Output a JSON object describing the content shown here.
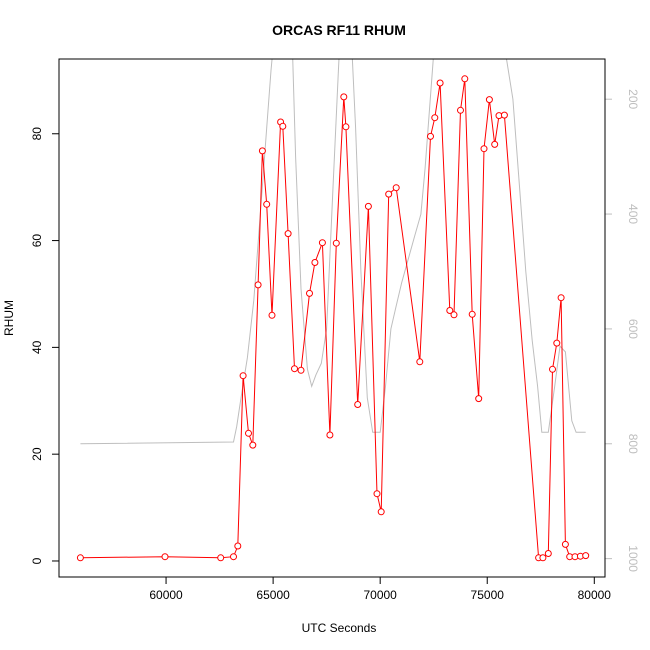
{
  "chart_data": {
    "type": "line",
    "title": "ORCAS RF11 RHUM",
    "xlabel": "UTC Seconds",
    "ylabel": "RHUM",
    "xlim": [
      55000,
      80500
    ],
    "ylim": [
      -3,
      94
    ],
    "x_ticks": [
      60000,
      65000,
      70000,
      75000,
      80000
    ],
    "y_ticks": [
      0,
      20,
      40,
      60,
      80
    ],
    "secondary_axis": {
      "side": "right",
      "reversed": true,
      "ticks": [
        200,
        400,
        600,
        800,
        1000
      ],
      "color": "#bebebe"
    },
    "series": [
      {
        "color": "#ff0000",
        "marker": "open-circle",
        "x": [
          56000,
          59950,
          62550,
          63150,
          63350,
          63600,
          63850,
          64050,
          64300,
          64500,
          64700,
          64950,
          65350,
          65450,
          65700,
          66000,
          66300,
          66700,
          66950,
          67300,
          67650,
          67950,
          68300,
          68400,
          68950,
          69450,
          69850,
          70050,
          70400,
          70750,
          71850,
          72350,
          72550,
          72800,
          73250,
          73450,
          73750,
          73950,
          74300,
          74600,
          74850,
          75100,
          75350,
          75550,
          75800,
          77400,
          77600,
          77850,
          78050,
          78250,
          78450,
          78650,
          78850,
          79100,
          79350,
          79600
        ],
        "y": [
          0.6,
          0.8,
          0.6,
          0.8,
          2.8,
          34.7,
          23.9,
          21.7,
          51.7,
          76.8,
          66.8,
          46.0,
          82.2,
          81.4,
          61.3,
          36.0,
          35.7,
          50.1,
          55.9,
          59.6,
          23.6,
          59.5,
          86.9,
          81.3,
          29.3,
          66.4,
          12.6,
          9.2,
          68.7,
          69.9,
          37.3,
          79.5,
          83.0,
          89.5,
          46.9,
          46.1,
          84.4,
          90.3,
          46.2,
          30.4,
          77.2,
          86.4,
          78.0,
          83.4,
          83.5,
          0.6,
          0.6,
          1.4,
          35.9,
          40.8,
          49.3,
          3.1,
          0.8,
          0.8,
          0.9,
          1.0
        ]
      },
      {
        "color": "#bebebe",
        "axis": "secondary",
        "x": [
          56000,
          63150,
          63300,
          63500,
          63800,
          64100,
          64400,
          64700,
          64900,
          65150,
          65400,
          65600,
          65800,
          66050,
          66300,
          66600,
          66800,
          67000,
          67250,
          67500,
          67800,
          68050,
          68250,
          68400,
          68600,
          68850,
          69100,
          69400,
          69650,
          69850,
          70000,
          70250,
          70500,
          70750,
          71000,
          71300,
          71600,
          71900,
          72100,
          72300,
          72500,
          72700,
          72950,
          73150,
          73300,
          73450,
          73600,
          73750,
          73950,
          74100,
          74350,
          74600,
          74850,
          75100,
          75350,
          75600,
          75900,
          76200,
          76500,
          76800,
          77100,
          77350,
          77550,
          77850,
          78150,
          78400,
          78650,
          78950,
          79150,
          79600
        ],
        "y": [
          800,
          797,
          770,
          720,
          650,
          550,
          400,
          250,
          150,
          50,
          -20,
          -60,
          -20,
          300,
          530,
          670,
          700,
          680,
          660,
          600,
          350,
          150,
          0,
          -60,
          50,
          250,
          500,
          720,
          780,
          780,
          780,
          700,
          600,
          560,
          520,
          480,
          440,
          400,
          320,
          220,
          120,
          30,
          -30,
          130,
          130,
          130,
          130,
          130,
          130,
          130,
          130,
          130,
          130,
          130,
          130,
          130,
          130,
          200,
          350,
          500,
          620,
          700,
          780,
          780,
          700,
          630,
          640,
          760,
          780,
          780
        ]
      }
    ]
  }
}
